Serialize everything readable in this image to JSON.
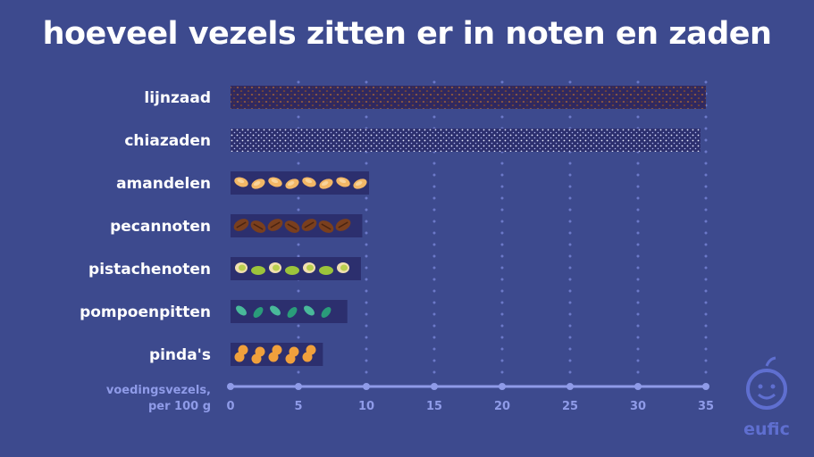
{
  "chart_data": {
    "type": "bar",
    "orientation": "horizontal",
    "title": "hoeveel vezels zitten er in noten en zaden",
    "categories": [
      "lijnzaad",
      "chiazaden",
      "amandelen",
      "pecannoten",
      "pistachenoten",
      "pompoenpitten",
      "pinda's"
    ],
    "values": [
      35,
      34.6,
      10.2,
      9.7,
      9.6,
      8.6,
      6.8
    ],
    "xlabel": [
      "voedingsvezels,",
      "per 100 g"
    ],
    "xlim": [
      0,
      35
    ],
    "xticks": [
      "0",
      "5",
      "10",
      "15",
      "20",
      "25",
      "30",
      "35"
    ],
    "grid": "dotted vertical",
    "bar_fill_icons": [
      "flax-seed-pattern",
      "chia-seed-pattern",
      "almond-icon",
      "pecan-icon",
      "pistachio-icon",
      "pumpkin-seed-icon",
      "peanut-icon"
    ]
  },
  "colors": {
    "background": "#3d4a8e",
    "bar": "#2c2f6e",
    "axis": "#8f9be8",
    "text": "#ffffff"
  },
  "logo": {
    "text": "eufic"
  }
}
